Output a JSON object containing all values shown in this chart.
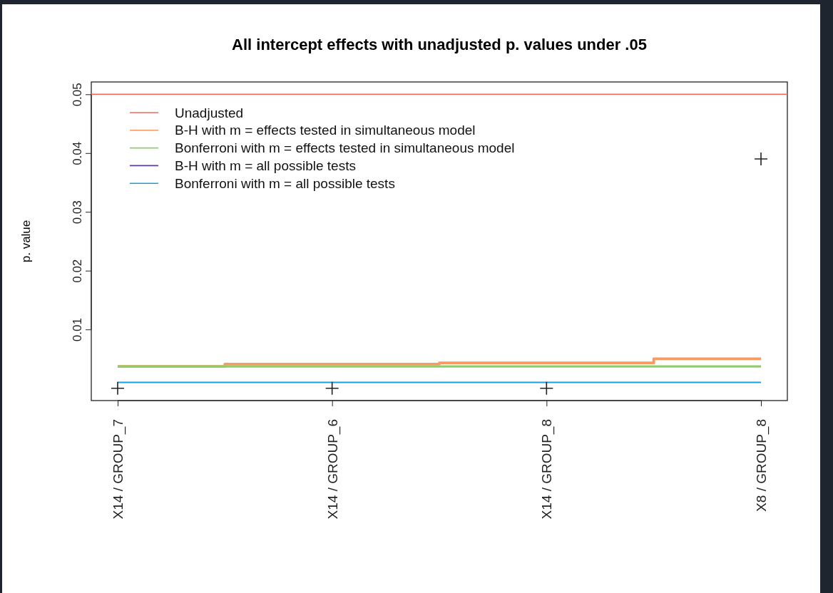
{
  "chart_data": {
    "type": "line",
    "title": "All intercept effects with unadjusted p. values under .05",
    "ylabel": "p. value",
    "categories": [
      "X14 / GROUP_7",
      "X14 / GROUP_6",
      "X14 / GROUP_8",
      "X8 / GROUP_8"
    ],
    "ref_lines": [
      {
        "axis": "y",
        "value": 0.05,
        "label": "Unadjusted",
        "color": "#f2675f"
      }
    ],
    "ylim": [
      -0.0021,
      0.0521
    ],
    "yticks": [
      0.01,
      0.02,
      0.03,
      0.04,
      0.05
    ],
    "grid": false,
    "legend": "top left",
    "line_style": "solid",
    "series": [
      {
        "name": "B-H with m = effects tested in simultaneous model",
        "type": "step",
        "color": "#f99a62",
        "values": [
          0.0037,
          0.0041,
          0.0043,
          0.005
        ]
      },
      {
        "name": "Bonferroni with m = effects tested in simultaneous model",
        "color": "#8fcf6a",
        "values": [
          0.0037,
          0.0037,
          0.0037,
          0.0037
        ]
      },
      {
        "name": "B-H with m = all possible tests",
        "color": "#5e3c99",
        "values": [
          null,
          null,
          null,
          null
        ]
      },
      {
        "name": "Bonferroni with m = all possible tests",
        "color": "#1a9fe0",
        "values": [
          0.001,
          0.001,
          0.001,
          0.001
        ]
      },
      {
        "type": "scatter",
        "color": "#222222",
        "marker": "cross",
        "values": [
          0,
          0,
          0,
          0.039
        ]
      }
    ]
  }
}
